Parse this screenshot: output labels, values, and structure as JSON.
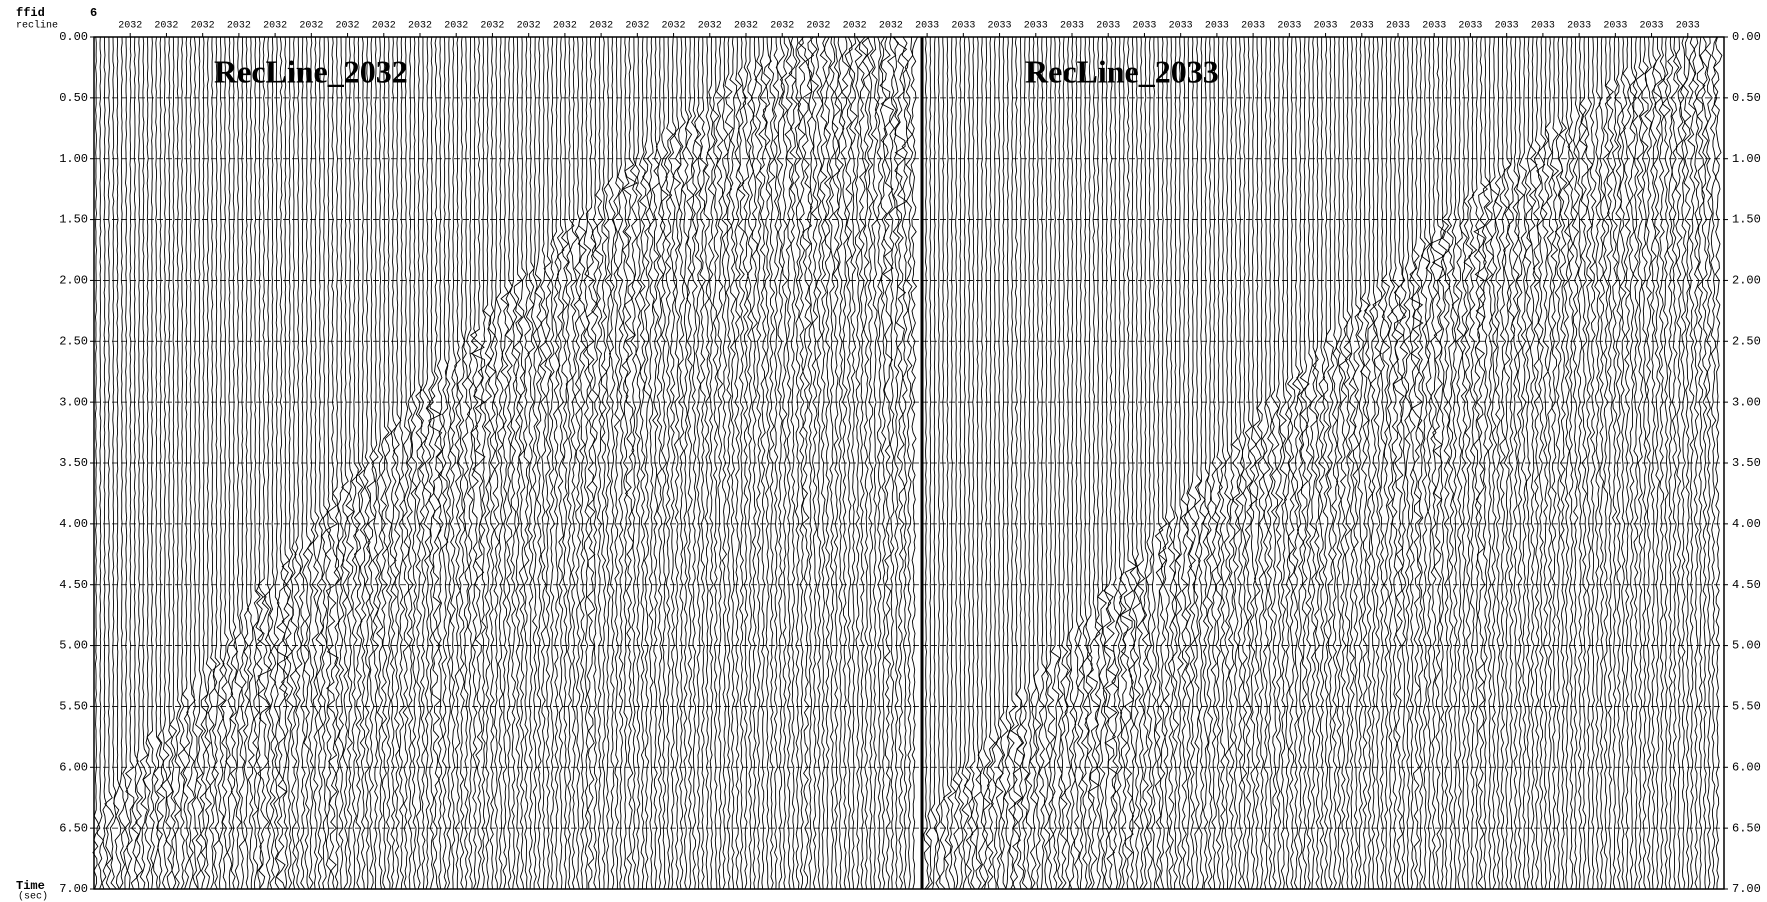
{
  "chart_data": {
    "type": "seismic",
    "header_label": "ffid",
    "header_value": "6",
    "x_axis_label": "recline",
    "y_axis_label": "Time",
    "y_axis_unit": "(sec)",
    "panel_titles": [
      "RecLine_2032",
      "RecLine_2033"
    ],
    "x_labels": [
      "2032",
      "2032",
      "2032",
      "2032",
      "2032",
      "2032",
      "2032",
      "2032",
      "2032",
      "2032",
      "2032",
      "2032",
      "2032",
      "2032",
      "2032",
      "2032",
      "2032",
      "2032",
      "2032",
      "2032",
      "2032",
      "2032",
      "2033",
      "2033",
      "2033",
      "2033",
      "2033",
      "2033",
      "2033",
      "2033",
      "2033",
      "2033",
      "2033",
      "2033",
      "2033",
      "2033",
      "2033",
      "2033",
      "2033",
      "2033",
      "2033",
      "2033",
      "2033",
      "2033"
    ],
    "ylim": [
      0,
      7
    ],
    "yticks": [
      {
        "value": 0,
        "label": "0.00"
      },
      {
        "value": 0.5,
        "label": "0.50"
      },
      {
        "value": 1,
        "label": "1.00"
      },
      {
        "value": 1.5,
        "label": "1.50"
      },
      {
        "value": 2,
        "label": "2.00"
      },
      {
        "value": 2.5,
        "label": "2.50"
      },
      {
        "value": 3,
        "label": "3.00"
      },
      {
        "value": 3.5,
        "label": "3.50"
      },
      {
        "value": 4,
        "label": "4.00"
      },
      {
        "value": 4.5,
        "label": "4.50"
      },
      {
        "value": 5,
        "label": "5.00"
      },
      {
        "value": 5.5,
        "label": "5.50"
      },
      {
        "value": 6,
        "label": "6.00"
      },
      {
        "value": 6.5,
        "label": "6.50"
      },
      {
        "value": 7,
        "label": "7.00"
      }
    ],
    "grid": true
  }
}
